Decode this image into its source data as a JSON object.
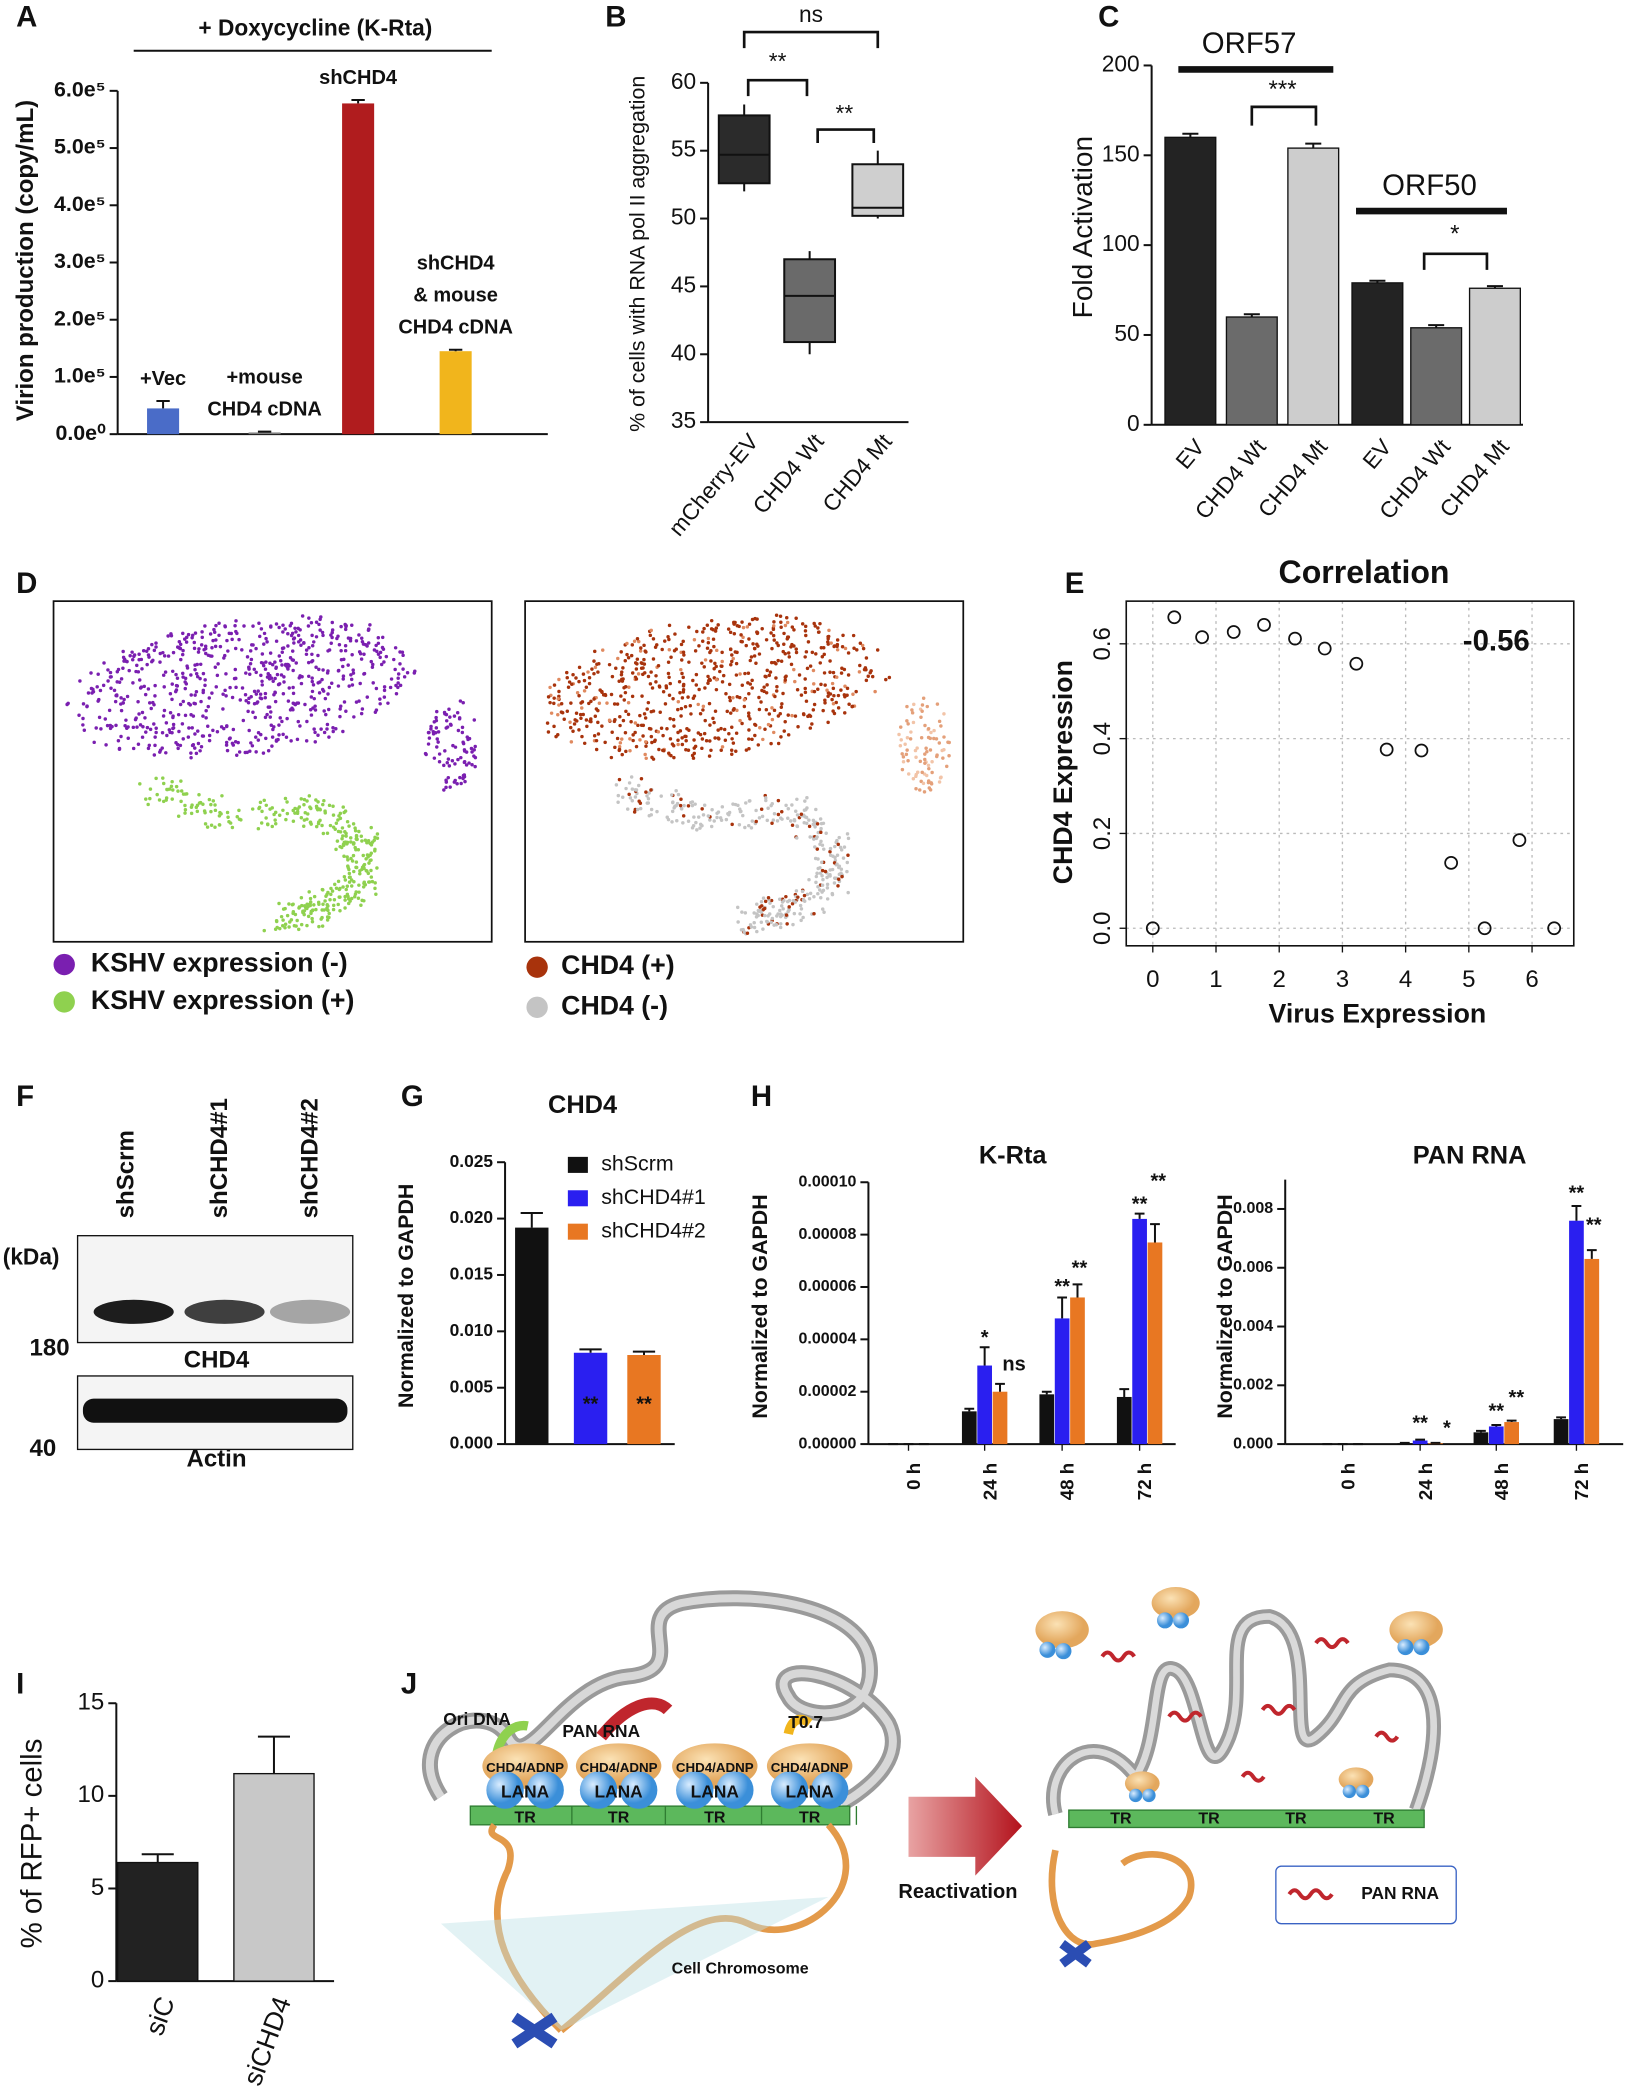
{
  "panel_labels": [
    "A",
    "B",
    "C",
    "D",
    "E",
    "F",
    "G",
    "H",
    "I",
    "J"
  ],
  "chart_data": [
    {
      "type": "bar",
      "title": "+ Doxycycline (K-Rta)",
      "y_label": "Virion production (copy/mL)",
      "categories": [
        [
          "+Vec"
        ],
        [
          "+mouse",
          "CHD4 cDNA"
        ],
        [
          "shCHD4"
        ],
        [
          "shCHD4",
          "& mouse",
          "CHD4 cDNA"
        ]
      ],
      "values": [
        45000,
        3000,
        578000,
        145000
      ],
      "errors": [
        13000,
        1500,
        6000,
        2500
      ],
      "colors": [
        "#4a6cc8",
        "#7f7f7f",
        "#b01c1e",
        "#f1b51c"
      ],
      "ylim": [
        0,
        600000
      ],
      "yticks": [
        {
          "value": 0,
          "label": "0.0e⁰"
        },
        {
          "value": 100000,
          "label": "1.0e⁵"
        },
        {
          "value": 200000,
          "label": "2.0e⁵"
        },
        {
          "value": 300000,
          "label": "3.0e⁵"
        },
        {
          "value": 400000,
          "label": "4.0e⁵"
        },
        {
          "value": 500000,
          "label": "5.0e⁵"
        },
        {
          "value": 600000,
          "label": "6.0e⁵"
        }
      ]
    },
    {
      "type": "box",
      "y_label": "% of cells with RNA pol II aggregation",
      "categories": [
        "mCherry-EV",
        "CHD4 Wt",
        "CHD4 Mt"
      ],
      "boxes": [
        {
          "min": 52,
          "q1": 52.6,
          "median": 54.7,
          "q3": 57.6,
          "max": 58.4
        },
        {
          "min": 40,
          "q1": 40.9,
          "median": 44.3,
          "q3": 47,
          "max": 47.6
        },
        {
          "min": 50,
          "q1": 50.2,
          "median": 50.8,
          "q3": 54,
          "max": 55
        }
      ],
      "colors": [
        "#2b2b2b",
        "#6a6a6a",
        "#cfcfcf"
      ],
      "ylim": [
        35,
        60
      ],
      "yticks": [
        35,
        40,
        45,
        50,
        55,
        60
      ],
      "annotations": [
        "ns",
        "**",
        "**"
      ]
    },
    {
      "type": "bar",
      "y_label": "Fold Activation",
      "categories": [
        "EV",
        "CHD4 Wt",
        "CHD4 Mt",
        "EV",
        "CHD4 Wt",
        "CHD4 Mt"
      ],
      "values": [
        160,
        60,
        154,
        79,
        54,
        76
      ],
      "errors": [
        2,
        1.5,
        2.5,
        1.2,
        1.5,
        1.2
      ],
      "colors": [
        "#232323",
        "#6b6b6b",
        "#cdcdcd",
        "#232323",
        "#6b6b6b",
        "#cdcdcd"
      ],
      "ylim": [
        0,
        200
      ],
      "yticks": [
        0,
        50,
        100,
        150,
        200
      ],
      "annotations": [
        "ORF57",
        "***",
        "ORF50",
        "*"
      ]
    },
    {
      "type": "scatter",
      "title": "Correlation",
      "x_label": "Virus Expression",
      "y_label": "CHD4 Expression",
      "x": [
        0,
        0.34,
        0.78,
        1.28,
        1.76,
        2.25,
        2.72,
        3.22,
        3.7,
        4.25,
        4.72,
        5.25,
        5.8,
        6.35
      ],
      "y": [
        0,
        0.656,
        0.614,
        0.625,
        0.64,
        0.611,
        0.59,
        0.558,
        0.377,
        0.375,
        0.138,
        0,
        0.186,
        0
      ],
      "xlim": [
        -0.42,
        6.66
      ],
      "ylim": [
        -0.037,
        0.69
      ],
      "xticks": [
        0,
        1,
        2,
        3,
        4,
        5,
        6
      ],
      "yticks": [
        {
          "value": 0,
          "label": "0.0"
        },
        0.2,
        0.4,
        0.6
      ],
      "grid": true,
      "annotation": "-0.56"
    },
    {
      "type": "bar",
      "title": "CHD4",
      "y_label": "Normalized to GAPDH",
      "series": [
        {
          "name": "shScrm",
          "color": "#111111",
          "values": [
            0.0192
          ],
          "errors": [
            0.0013
          ]
        },
        {
          "name": "shCHD4#1",
          "color": "#2a1ff0",
          "values": [
            0.0081
          ],
          "errors": [
            0.0003
          ]
        },
        {
          "name": "shCHD4#2",
          "color": "#e87722",
          "values": [
            0.0079
          ],
          "errors": [
            0.0003
          ]
        }
      ],
      "ylim": [
        0,
        0.025
      ],
      "yticks": [
        {
          "value": 0,
          "label": "0.000"
        },
        0.005,
        {
          "value": 0.01,
          "label": "0.010"
        },
        0.015,
        {
          "value": 0.02,
          "label": "0.020"
        },
        0.025
      ],
      "annotations": [
        "**",
        "**"
      ]
    },
    {
      "type": "bar",
      "title": "K-Rta",
      "y_label": "Normalized to GAPDH",
      "categories": [
        "0 h",
        "24 h",
        "48 h",
        "72 h"
      ],
      "series": [
        {
          "color": "#111111",
          "values": [
            0,
            1.25e-05,
            1.9e-05,
            1.8e-05
          ],
          "errors": [
            0,
            1e-06,
            1e-06,
            3e-06
          ]
        },
        {
          "color": "#2a1ff0",
          "values": [
            0,
            3e-05,
            4.8e-05,
            8.6e-05
          ],
          "errors": [
            0,
            7e-06,
            8e-06,
            2e-06
          ]
        },
        {
          "color": "#e87722",
          "values": [
            0,
            2e-05,
            5.6e-05,
            7.7e-05
          ],
          "errors": [
            0,
            3e-06,
            5e-06,
            7e-06
          ]
        }
      ],
      "ylim": [
        0,
        0.0001
      ],
      "yticks": [
        {
          "value": 0,
          "label": "0.00000"
        },
        {
          "value": 2e-05,
          "label": "0.00002"
        },
        {
          "value": 4e-05,
          "label": "0.00004"
        },
        {
          "value": 6e-05,
          "label": "0.00006"
        },
        {
          "value": 8e-05,
          "label": "0.00008"
        },
        {
          "value": 0.0001,
          "label": "0.00010"
        }
      ],
      "annotations": [
        "*",
        "ns",
        "**",
        "**",
        "**",
        "**"
      ]
    },
    {
      "type": "bar",
      "title": "PAN RNA",
      "y_label": "Normalized to GAPDH",
      "categories": [
        "0 h",
        "24 h",
        "48 h",
        "72 h"
      ],
      "series": [
        {
          "color": "#111111",
          "values": [
            0,
            3e-05,
            0.0004,
            0.00085
          ],
          "errors": [
            0,
            1e-05,
            5e-05,
            6e-05
          ]
        },
        {
          "color": "#2a1ff0",
          "values": [
            0,
            0.00012,
            0.0006,
            0.0076
          ],
          "errors": [
            0,
            3e-05,
            5e-05,
            0.0005
          ]
        },
        {
          "color": "#e87722",
          "values": [
            0,
            3e-05,
            0.00075,
            0.0063
          ],
          "errors": [
            0,
            1e-05,
            5e-05,
            0.0003
          ]
        }
      ],
      "ylim": [
        0,
        0.009
      ],
      "yticks": [
        {
          "value": 0,
          "label": "0.000"
        },
        0.002,
        0.004,
        0.006,
        0.008
      ],
      "annotations": [
        "**",
        "*",
        "**",
        "**",
        "**",
        "**"
      ]
    },
    {
      "type": "bar",
      "y_label": "% of RFP+ cells",
      "categories": [
        "siC",
        "siCHD4"
      ],
      "values": [
        6.4,
        11.2
      ],
      "errors": [
        0.45,
        2
      ],
      "colors": [
        "#222222",
        "#c8c8c8"
      ],
      "ylim": [
        0,
        15
      ],
      "yticks": [
        0,
        5,
        10,
        15
      ]
    }
  ],
  "tsne": {
    "legend_left": [
      "KSHV expression (-)",
      "KSHV expression (+)"
    ],
    "colors_left": [
      "#7a1fb0",
      "#8fd14f"
    ],
    "legend_right": [
      "CHD4 (+)",
      "CHD4 (-)"
    ],
    "colors_right": [
      "#a8330c",
      "#c4c4c4"
    ]
  },
  "blot": {
    "lanes": [
      "shScrm",
      "shCHD4#1",
      "shCHD4#2"
    ],
    "unit": "(kDa)",
    "markers": [
      "180",
      "40"
    ],
    "bands": [
      "CHD4",
      "Actin"
    ]
  },
  "diagram": {
    "left_labels": [
      "Ori DNA",
      "PAN RNA",
      "T0.7"
    ],
    "complex": [
      "CHD4/ADNP",
      "CHD4/ADNP",
      "CHD4/ADNP",
      "CHD4/ADNP"
    ],
    "lana": [
      "LANA",
      "LANA",
      "LANA",
      "LANA"
    ],
    "left_tr": [
      "TR",
      "TR",
      "TR",
      "TR"
    ],
    "chromosome": "Cell Chromosome",
    "arrow": "Reactivation",
    "right_tr": [
      "TR",
      "TR",
      "TR",
      "TR"
    ],
    "legend": "PAN RNA"
  }
}
